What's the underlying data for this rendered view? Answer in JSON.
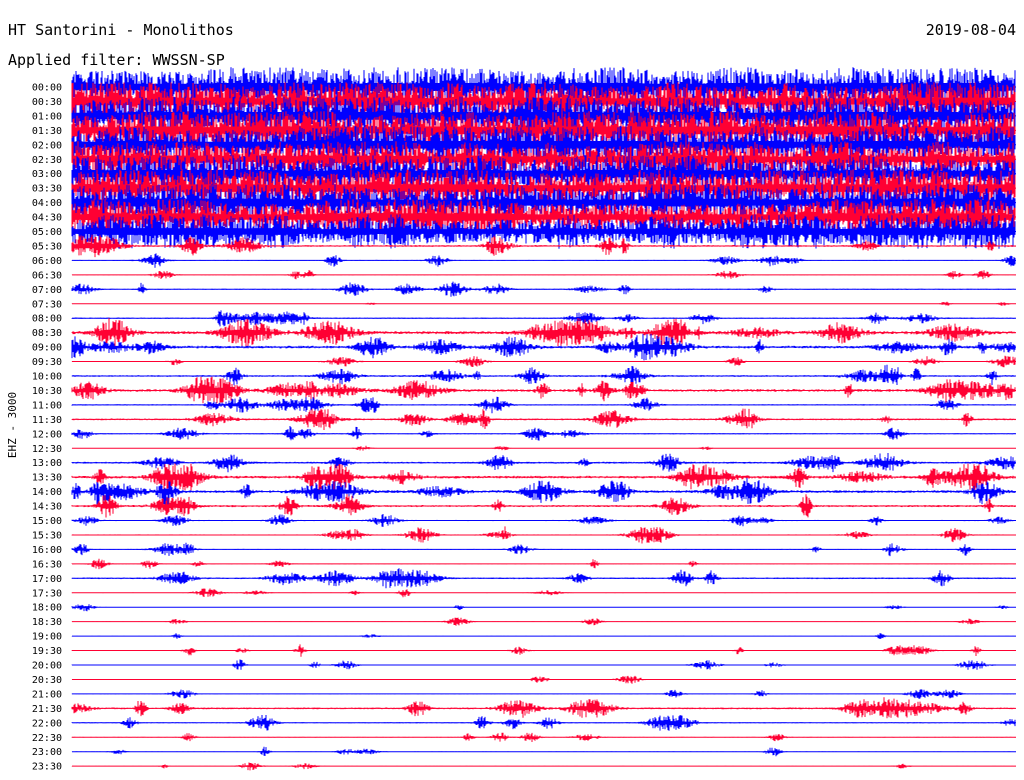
{
  "header": {
    "station": "HT Santorini - Monolithos",
    "date": "2019-08-04",
    "filter": "Applied filter: WWSSN-SP"
  },
  "chart_data": {
    "type": "line",
    "title": "HT Santorini - Monolithos",
    "subtitle": "Applied filter: WWSSN-SP",
    "ylabel": "EHZ - 3000",
    "xlabel": "",
    "trace_colors": [
      "#0000ff",
      "#ff0033"
    ],
    "rows": [
      {
        "time": "00:00",
        "activity": 0.95
      },
      {
        "time": "00:30",
        "activity": 0.92
      },
      {
        "time": "01:00",
        "activity": 0.93
      },
      {
        "time": "01:30",
        "activity": 0.92
      },
      {
        "time": "02:00",
        "activity": 0.9
      },
      {
        "time": "02:30",
        "activity": 0.85
      },
      {
        "time": "03:00",
        "activity": 0.88
      },
      {
        "time": "03:30",
        "activity": 0.9
      },
      {
        "time": "04:00",
        "activity": 0.9
      },
      {
        "time": "04:30",
        "activity": 0.85
      },
      {
        "time": "05:00",
        "activity": 0.8
      },
      {
        "time": "05:30",
        "activity": 0.45
      },
      {
        "time": "06:00",
        "activity": 0.25
      },
      {
        "time": "06:30",
        "activity": 0.2
      },
      {
        "time": "07:00",
        "activity": 0.3
      },
      {
        "time": "07:30",
        "activity": 0.05
      },
      {
        "time": "08:00",
        "activity": 0.35
      },
      {
        "time": "08:30",
        "activity": 0.65
      },
      {
        "time": "09:00",
        "activity": 0.6
      },
      {
        "time": "09:30",
        "activity": 0.2
      },
      {
        "time": "10:00",
        "activity": 0.45
      },
      {
        "time": "10:30",
        "activity": 0.6
      },
      {
        "time": "11:00",
        "activity": 0.35
      },
      {
        "time": "11:30",
        "activity": 0.45
      },
      {
        "time": "12:00",
        "activity": 0.3
      },
      {
        "time": "12:30",
        "activity": 0.05
      },
      {
        "time": "13:00",
        "activity": 0.45
      },
      {
        "time": "13:30",
        "activity": 0.6
      },
      {
        "time": "14:00",
        "activity": 0.6
      },
      {
        "time": "14:30",
        "activity": 0.5
      },
      {
        "time": "15:00",
        "activity": 0.3
      },
      {
        "time": "15:30",
        "activity": 0.3
      },
      {
        "time": "16:00",
        "activity": 0.25
      },
      {
        "time": "16:30",
        "activity": 0.2
      },
      {
        "time": "17:00",
        "activity": 0.4
      },
      {
        "time": "17:30",
        "activity": 0.15
      },
      {
        "time": "18:00",
        "activity": 0.1
      },
      {
        "time": "18:30",
        "activity": 0.1
      },
      {
        "time": "19:00",
        "activity": 0.05
      },
      {
        "time": "19:30",
        "activity": 0.25
      },
      {
        "time": "20:00",
        "activity": 0.2
      },
      {
        "time": "20:30",
        "activity": 0.05
      },
      {
        "time": "21:00",
        "activity": 0.15
      },
      {
        "time": "21:30",
        "activity": 0.45
      },
      {
        "time": "22:00",
        "activity": 0.3
      },
      {
        "time": "22:30",
        "activity": 0.2
      },
      {
        "time": "23:00",
        "activity": 0.15
      },
      {
        "time": "23:30",
        "activity": 0.1
      }
    ]
  }
}
